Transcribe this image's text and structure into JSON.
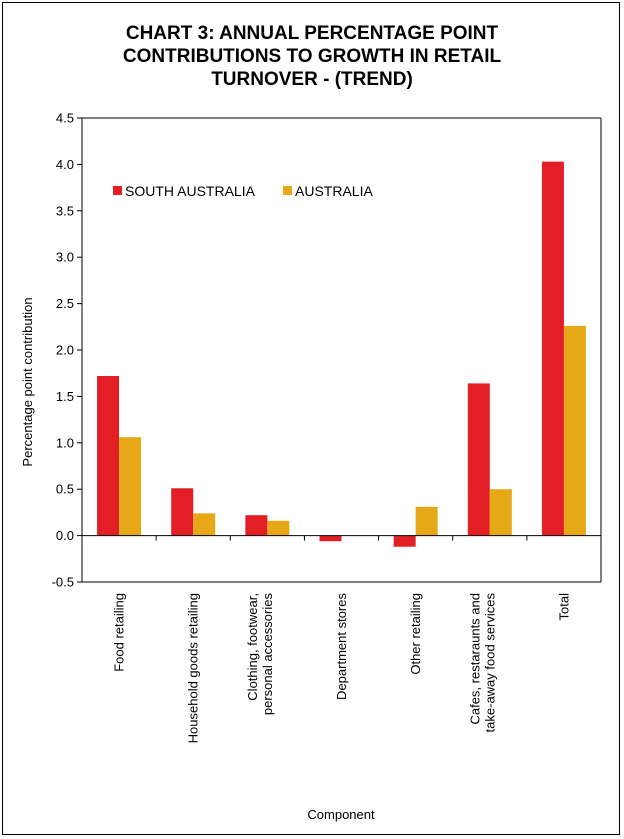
{
  "chart_data": {
    "type": "bar",
    "title": "CHART 3: ANNUAL PERCENTAGE POINT\nCONTRIBUTIONS TO GROWTH IN RETAIL\nTURNOVER - (TREND)",
    "xlabel": "Component",
    "ylabel": "Percentage point contribution",
    "ylim": [
      -0.5,
      4.5
    ],
    "yticks": [
      "-0.5",
      "0.0",
      "0.5",
      "1.0",
      "1.5",
      "2.0",
      "2.5",
      "3.0",
      "3.5",
      "4.0",
      "4.5"
    ],
    "categories": [
      [
        "Food retailing"
      ],
      [
        "Household goods retailing"
      ],
      [
        "Clothing, footwear,",
        "personal accessories"
      ],
      [
        "Department stores"
      ],
      [
        "Other retailing"
      ],
      [
        "Cafes, restaraunts and",
        "take-away food services"
      ],
      [
        "Total"
      ]
    ],
    "series": [
      {
        "name": "SOUTH AUSTRALIA",
        "color": "#e31f26",
        "values": [
          1.72,
          0.51,
          0.22,
          -0.06,
          -0.12,
          1.64,
          4.03
        ]
      },
      {
        "name": "AUSTRALIA",
        "color": "#e6a817",
        "values": [
          1.06,
          0.24,
          0.16,
          0.0,
          0.31,
          0.5,
          2.26
        ]
      }
    ],
    "grid": false,
    "legend_position": "top-left"
  }
}
